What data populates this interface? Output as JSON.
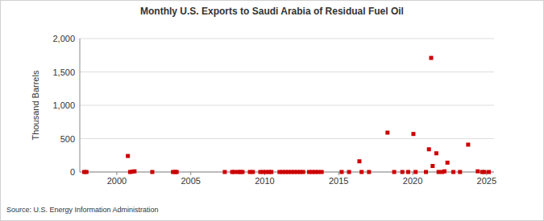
{
  "chart_data": {
    "type": "scatter",
    "title": "Monthly U.S. Exports to Saudi Arabia of Residual Fuel Oil",
    "y_label": "Thousand Barrels",
    "source": "Source: U.S. Energy Information Administration",
    "x": [
      1997.8,
      1997.95,
      2000.75,
      2000.9,
      2001.05,
      2001.2,
      2002.4,
      2003.8,
      2003.95,
      2004.05,
      2007.3,
      2007.8,
      2007.95,
      2008.2,
      2008.35,
      2008.5,
      2009.0,
      2009.2,
      2009.7,
      2009.9,
      2010.1,
      2010.3,
      2010.45,
      2011.0,
      2011.2,
      2011.4,
      2011.6,
      2011.8,
      2012.0,
      2012.2,
      2012.4,
      2012.6,
      2013.0,
      2013.2,
      2013.4,
      2013.6,
      2013.85,
      2015.2,
      2015.7,
      2016.4,
      2016.55,
      2017.05,
      2018.3,
      2018.75,
      2019.3,
      2019.7,
      2020.05,
      2020.2,
      2020.9,
      2021.1,
      2021.25,
      2021.35,
      2021.6,
      2021.75,
      2022.0,
      2022.15,
      2022.35,
      2022.75,
      2023.2,
      2023.75,
      2024.4,
      2024.7,
      2024.85,
      2025.15
    ],
    "values": [
      0,
      0,
      240,
      0,
      5,
      10,
      0,
      0,
      0,
      0,
      0,
      0,
      0,
      0,
      0,
      0,
      0,
      0,
      0,
      0,
      0,
      0,
      0,
      0,
      0,
      0,
      0,
      0,
      0,
      0,
      0,
      0,
      0,
      0,
      0,
      0,
      0,
      0,
      0,
      160,
      0,
      0,
      590,
      0,
      0,
      0,
      570,
      0,
      0,
      340,
      1710,
      90,
      280,
      0,
      0,
      10,
      140,
      0,
      0,
      410,
      10,
      0,
      0,
      0
    ],
    "color": "#cc0000",
    "marker": "square",
    "xlim": [
      1997.5,
      2025.5
    ],
    "xticks": [
      2000,
      2005,
      2010,
      2015,
      2020,
      2025
    ],
    "ylim": [
      0,
      2000
    ],
    "yticks": [
      0,
      {
        "value": 500,
        "label": "500"
      },
      {
        "value": 1000,
        "label": "1,000"
      },
      {
        "value": 1500,
        "label": "1,500"
      },
      {
        "value": 2000,
        "label": "2,000"
      }
    ],
    "grid": true
  }
}
